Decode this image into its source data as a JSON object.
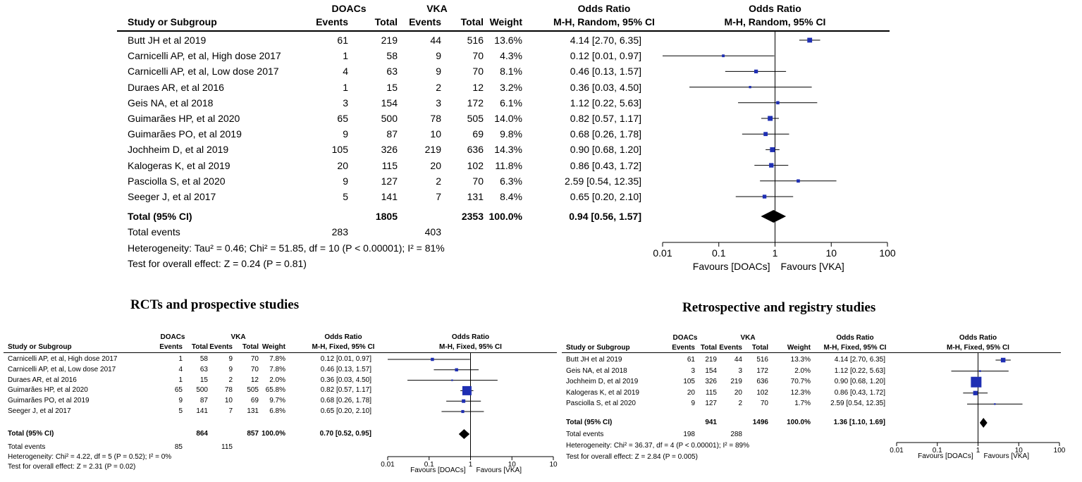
{
  "panel_main": {
    "header": {
      "study": "Study or Subgroup",
      "group1": "DOACs",
      "group2": "VKA",
      "events": "Events",
      "total": "Total",
      "weight": "Weight",
      "or": "Odds Ratio",
      "method": "M-H, Random, 95% CI",
      "plot_or": "Odds Ratio",
      "plot_method": "M-H, Random, 95% CI"
    },
    "rows": [
      {
        "study": "Butt JH et al 2019",
        "e1": "61",
        "t1": "219",
        "e2": "44",
        "t2": "516",
        "weight": "13.6%",
        "ci": "4.14 [2.70, 6.35]"
      },
      {
        "study": "Carnicelli AP, et al, High dose 2017",
        "e1": "1",
        "t1": "58",
        "e2": "9",
        "t2": "70",
        "weight": "4.3%",
        "ci": "0.12 [0.01, 0.97]"
      },
      {
        "study": "Carnicelli AP, et al, Low dose 2017",
        "e1": "4",
        "t1": "63",
        "e2": "9",
        "t2": "70",
        "weight": "8.1%",
        "ci": "0.46 [0.13, 1.57]"
      },
      {
        "study": "Duraes AR, et al 2016",
        "e1": "1",
        "t1": "15",
        "e2": "2",
        "t2": "12",
        "weight": "3.2%",
        "ci": "0.36 [0.03, 4.50]"
      },
      {
        "study": "Geis NA, et al 2018",
        "e1": "3",
        "t1": "154",
        "e2": "3",
        "t2": "172",
        "weight": "6.1%",
        "ci": "1.12 [0.22, 5.63]"
      },
      {
        "study": "Guimarães HP, et al 2020",
        "e1": "65",
        "t1": "500",
        "e2": "78",
        "t2": "505",
        "weight": "14.0%",
        "ci": "0.82 [0.57, 1.17]"
      },
      {
        "study": "Guimarães PO, et al 2019",
        "e1": "9",
        "t1": "87",
        "e2": "10",
        "t2": "69",
        "weight": "9.8%",
        "ci": "0.68 [0.26, 1.78]"
      },
      {
        "study": "Jochheim D, et al 2019",
        "e1": "105",
        "t1": "326",
        "e2": "219",
        "t2": "636",
        "weight": "14.3%",
        "ci": "0.90 [0.68, 1.20]"
      },
      {
        "study": "Kalogeras K, et al 2019",
        "e1": "20",
        "t1": "115",
        "e2": "20",
        "t2": "102",
        "weight": "11.8%",
        "ci": "0.86 [0.43, 1.72]"
      },
      {
        "study": "Pasciolla S, et al 2020",
        "e1": "9",
        "t1": "127",
        "e2": "2",
        "t2": "70",
        "weight": "6.3%",
        "ci": "2.59 [0.54, 12.35]"
      },
      {
        "study": "Seeger J, et al 2017",
        "e1": "5",
        "t1": "141",
        "e2": "7",
        "t2": "131",
        "weight": "8.4%",
        "ci": "0.65 [0.20, 2.10]"
      }
    ],
    "total": {
      "label": "Total (95% CI)",
      "t1": "1805",
      "t2": "2353",
      "weight": "100.0%",
      "ci": "0.94 [0.56, 1.57]"
    },
    "events": {
      "label": "Total events",
      "e1": "283",
      "e2": "403"
    },
    "heterogeneity": "Heterogeneity: Tau² = 0.46; Chi² = 51.85, df = 10 (P < 0.00001); I² = 81%",
    "overall": "Test for overall effect: Z = 0.24 (P = 0.81)",
    "favours_left": "Favours [DOACs]",
    "favours_right": "Favours [VKA]"
  },
  "panel_rct": {
    "title": "RCTs and prospective studies",
    "header": {
      "study": "Study or Subgroup",
      "group1": "DOACs",
      "group2": "VKA",
      "events": "Events",
      "total": "Total",
      "weight": "Weight",
      "or": "Odds Ratio",
      "method": "M-H, Fixed, 95% CI",
      "plot_or": "Odds Ratio",
      "plot_method": "M-H, Fixed, 95% CI"
    },
    "rows": [
      {
        "study": "Carnicelli AP, et al, High dose 2017",
        "e1": "1",
        "t1": "58",
        "e2": "9",
        "t2": "70",
        "weight": "7.8%",
        "ci": "0.12 [0.01, 0.97]"
      },
      {
        "study": "Carnicelli AP, et al, Low dose 2017",
        "e1": "4",
        "t1": "63",
        "e2": "9",
        "t2": "70",
        "weight": "7.8%",
        "ci": "0.46 [0.13, 1.57]"
      },
      {
        "study": "Duraes AR, et al 2016",
        "e1": "1",
        "t1": "15",
        "e2": "2",
        "t2": "12",
        "weight": "2.0%",
        "ci": "0.36 [0.03, 4.50]"
      },
      {
        "study": "Guimarães HP, et al 2020",
        "e1": "65",
        "t1": "500",
        "e2": "78",
        "t2": "505",
        "weight": "65.8%",
        "ci": "0.82 [0.57, 1.17]"
      },
      {
        "study": "Guimarães PO, et al 2019",
        "e1": "9",
        "t1": "87",
        "e2": "10",
        "t2": "69",
        "weight": "9.7%",
        "ci": "0.68 [0.26, 1.78]"
      },
      {
        "study": "Seeger J, et al 2017",
        "e1": "5",
        "t1": "141",
        "e2": "7",
        "t2": "131",
        "weight": "6.8%",
        "ci": "0.65 [0.20, 2.10]"
      }
    ],
    "total": {
      "label": "Total (95% CI)",
      "t1": "864",
      "t2": "857",
      "weight": "100.0%",
      "ci": "0.70 [0.52, 0.95]"
    },
    "events": {
      "label": "Total events",
      "e1": "85",
      "e2": "115"
    },
    "heterogeneity": "Heterogeneity: Chi² = 4.22, df = 5 (P = 0.52); I² = 0%",
    "overall": "Test for overall effect: Z = 2.31 (P = 0.02)",
    "favours_left": "Favours [DOACs]",
    "favours_right": "Favours [VKA]"
  },
  "panel_retro": {
    "title": "Retrospective and registry studies",
    "header": {
      "study": "Study or Subgroup",
      "group1": "DOACs",
      "group2": "VKA",
      "events": "Events",
      "total": "Total",
      "weight": "Weight",
      "or": "Odds Ratio",
      "method": "M-H, Fixed, 95% CI",
      "plot_or": "Odds Ratio",
      "plot_method": "M-H, Fixed, 95% CI"
    },
    "rows": [
      {
        "study": "Butt JH et al 2019",
        "e1": "61",
        "t1": "219",
        "e2": "44",
        "t2": "516",
        "weight": "13.3%",
        "ci": "4.14 [2.70, 6.35]"
      },
      {
        "study": "Geis NA, et al 2018",
        "e1": "3",
        "t1": "154",
        "e2": "3",
        "t2": "172",
        "weight": "2.0%",
        "ci": "1.12 [0.22, 5.63]"
      },
      {
        "study": "Jochheim D, et al 2019",
        "e1": "105",
        "t1": "326",
        "e2": "219",
        "t2": "636",
        "weight": "70.7%",
        "ci": "0.90 [0.68, 1.20]"
      },
      {
        "study": "Kalogeras K, et al 2019",
        "e1": "20",
        "t1": "115",
        "e2": "20",
        "t2": "102",
        "weight": "12.3%",
        "ci": "0.86 [0.43, 1.72]"
      },
      {
        "study": "Pasciolla S, et al 2020",
        "e1": "9",
        "t1": "127",
        "e2": "2",
        "t2": "70",
        "weight": "1.7%",
        "ci": "2.59 [0.54, 12.35]"
      }
    ],
    "total": {
      "label": "Total (95% CI)",
      "t1": "941",
      "t2": "1496",
      "weight": "100.0%",
      "ci": "1.36 [1.10, 1.69]"
    },
    "events": {
      "label": "Total events",
      "e1": "198",
      "e2": "288"
    },
    "heterogeneity": "Heterogeneity: Chi² = 36.37, df = 4 (P < 0.00001); I² = 89%",
    "overall": "Test for overall effect: Z = 2.84 (P = 0.005)",
    "favours_left": "Favours [DOACs]",
    "favours_right": "Favours [VKA]"
  },
  "chart_data": [
    {
      "type": "forest",
      "title": "Odds Ratio M-H, Random, 95% CI",
      "xscale": "log",
      "xlim": [
        0.01,
        100
      ],
      "ticks": [
        "0.01",
        "0.1",
        "1",
        "10",
        "100"
      ],
      "study_or": [
        4.14,
        0.12,
        0.46,
        0.36,
        1.12,
        0.82,
        0.68,
        0.9,
        0.86,
        2.59,
        0.65
      ],
      "study_lo": [
        2.7,
        0.01,
        0.13,
        0.03,
        0.22,
        0.57,
        0.26,
        0.68,
        0.43,
        0.54,
        0.2
      ],
      "study_hi": [
        6.35,
        0.97,
        1.57,
        4.5,
        5.63,
        1.17,
        1.78,
        1.2,
        1.72,
        12.35,
        2.1
      ],
      "weights": [
        13.6,
        4.3,
        8.1,
        3.2,
        6.1,
        14.0,
        9.8,
        14.3,
        11.8,
        6.3,
        8.4
      ],
      "pooled": [
        0.94,
        0.56,
        1.57
      ]
    },
    {
      "type": "forest",
      "title": "Odds Ratio M-H, Fixed, 95% CI",
      "xscale": "log",
      "xlim": [
        0.01,
        100
      ],
      "ticks": [
        "0.01",
        "0.1",
        "1",
        "10",
        "10"
      ],
      "study_or": [
        0.12,
        0.46,
        0.36,
        0.82,
        0.68,
        0.65
      ],
      "study_lo": [
        0.01,
        0.13,
        0.03,
        0.57,
        0.26,
        0.2
      ],
      "study_hi": [
        0.97,
        1.57,
        4.5,
        1.17,
        1.78,
        2.1
      ],
      "weights": [
        7.8,
        7.8,
        2.0,
        65.8,
        9.7,
        6.8
      ],
      "pooled": [
        0.7,
        0.52,
        0.95
      ]
    },
    {
      "type": "forest",
      "title": "Odds Ratio M-H, Fixed, 95% CI",
      "xscale": "log",
      "xlim": [
        0.01,
        100
      ],
      "ticks": [
        "0.01",
        "0.1",
        "1",
        "10",
        "100"
      ],
      "study_or": [
        4.14,
        1.12,
        0.9,
        0.86,
        2.59
      ],
      "study_lo": [
        2.7,
        0.22,
        0.68,
        0.43,
        0.54
      ],
      "study_hi": [
        6.35,
        5.63,
        1.2,
        1.72,
        12.35
      ],
      "weights": [
        13.3,
        2.0,
        70.7,
        12.3,
        1.7
      ],
      "pooled": [
        1.36,
        1.1,
        1.69
      ]
    }
  ]
}
